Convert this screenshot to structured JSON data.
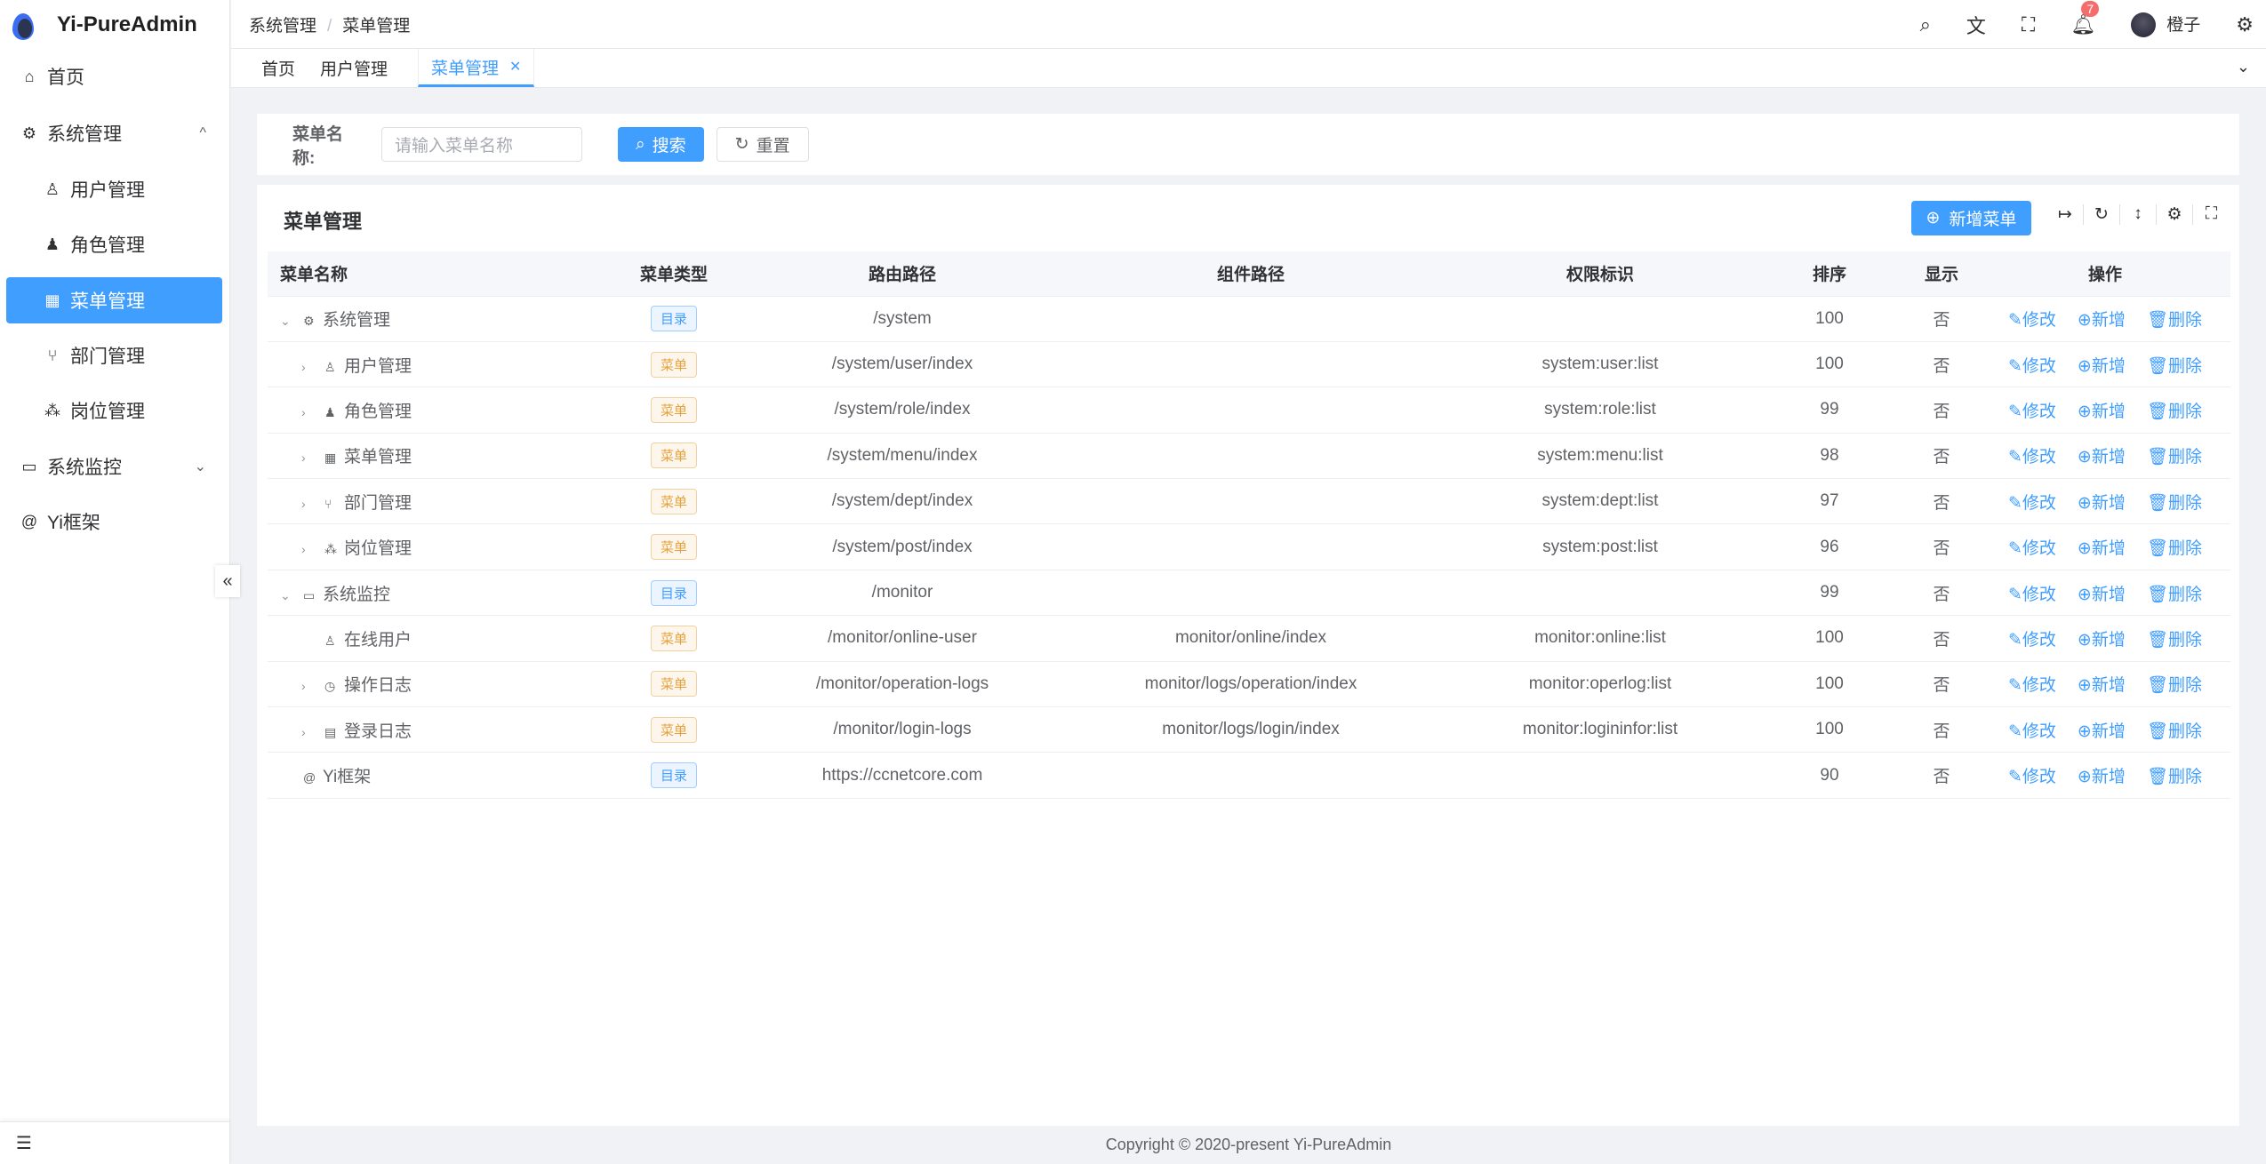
{
  "app": {
    "title": "Yi-PureAdmin"
  },
  "sidebar": {
    "items": [
      {
        "label": "首页",
        "icon": "home-icon",
        "glyph": "⌂"
      },
      {
        "label": "系统管理",
        "icon": "gear-icon",
        "glyph": "⚙",
        "chev": "^"
      },
      {
        "label": "用户管理",
        "icon": "user-icon",
        "glyph": "♙"
      },
      {
        "label": "角色管理",
        "icon": "role-icon",
        "glyph": "♟"
      },
      {
        "label": "菜单管理",
        "icon": "grid-icon",
        "glyph": "▦"
      },
      {
        "label": "部门管理",
        "icon": "branch-icon",
        "glyph": "⑂"
      },
      {
        "label": "岗位管理",
        "icon": "tree-icon",
        "glyph": "⁂"
      },
      {
        "label": "系统监控",
        "icon": "monitor-icon",
        "glyph": "▭",
        "chev": "⌄"
      },
      {
        "label": "Yi框架",
        "icon": "at-icon",
        "glyph": "@"
      }
    ],
    "collapse_glyph": "«",
    "bottom_glyph": "☰"
  },
  "header": {
    "breadcrumb": [
      "系统管理",
      "菜单管理"
    ],
    "user": "橙子",
    "notifications": "7"
  },
  "tabs": [
    "首页",
    "用户管理",
    "菜单管理"
  ],
  "search": {
    "label": "菜单名称:",
    "placeholder": "请输入菜单名称",
    "search": "搜索",
    "reset": "重置"
  },
  "table": {
    "title": "菜单管理",
    "add": "新增菜单",
    "columns": [
      "菜单名称",
      "菜单类型",
      "路由路径",
      "组件路径",
      "权限标识",
      "排序",
      "显示",
      "操作"
    ],
    "actions": [
      "修改",
      "新增",
      "删除"
    ],
    "rows": [
      {
        "level": 0,
        "expand": "open",
        "icon": "⚙",
        "name": "系统管理",
        "type": "目录",
        "route": "/system",
        "component": "",
        "perm": "",
        "sort": "100",
        "show": "否"
      },
      {
        "level": 1,
        "expand": "closed",
        "icon": "♙",
        "name": "用户管理",
        "type": "菜单",
        "route": "/system/user/index",
        "component": "",
        "perm": "system:user:list",
        "sort": "100",
        "show": "否"
      },
      {
        "level": 1,
        "expand": "closed",
        "icon": "♟",
        "name": "角色管理",
        "type": "菜单",
        "route": "/system/role/index",
        "component": "",
        "perm": "system:role:list",
        "sort": "99",
        "show": "否"
      },
      {
        "level": 1,
        "expand": "closed",
        "icon": "▦",
        "name": "菜单管理",
        "type": "菜单",
        "route": "/system/menu/index",
        "component": "",
        "perm": "system:menu:list",
        "sort": "98",
        "show": "否"
      },
      {
        "level": 1,
        "expand": "closed",
        "icon": "⑂",
        "name": "部门管理",
        "type": "菜单",
        "route": "/system/dept/index",
        "component": "",
        "perm": "system:dept:list",
        "sort": "97",
        "show": "否"
      },
      {
        "level": 1,
        "expand": "closed",
        "icon": "⁂",
        "name": "岗位管理",
        "type": "菜单",
        "route": "/system/post/index",
        "component": "",
        "perm": "system:post:list",
        "sort": "96",
        "show": "否"
      },
      {
        "level": 0,
        "expand": "open",
        "icon": "▭",
        "name": "系统监控",
        "type": "目录",
        "route": "/monitor",
        "component": "",
        "perm": "",
        "sort": "99",
        "show": "否"
      },
      {
        "level": 1,
        "expand": "none",
        "icon": "♙",
        "name": "在线用户",
        "type": "菜单",
        "route": "/monitor/online-user",
        "component": "monitor/online/index",
        "perm": "monitor:online:list",
        "sort": "100",
        "show": "否"
      },
      {
        "level": 1,
        "expand": "closed",
        "icon": "◷",
        "name": "操作日志",
        "type": "菜单",
        "route": "/monitor/operation-logs",
        "component": "monitor/logs/operation/index",
        "perm": "monitor:operlog:list",
        "sort": "100",
        "show": "否"
      },
      {
        "level": 1,
        "expand": "closed",
        "icon": "▤",
        "name": "登录日志",
        "type": "菜单",
        "route": "/monitor/login-logs",
        "component": "monitor/logs/login/index",
        "perm": "monitor:logininfor:list",
        "sort": "100",
        "show": "否"
      },
      {
        "level": 0,
        "expand": "none",
        "icon": "@",
        "name": "Yi框架",
        "type": "目录",
        "route": "https://ccnetcore.com",
        "component": "",
        "perm": "",
        "sort": "90",
        "show": "否"
      }
    ]
  },
  "footer": "Copyright © 2020-present Yi-PureAdmin",
  "colors": {
    "primary": "#409eff",
    "warning": "#e6a23c",
    "danger": "#f56c6c"
  }
}
